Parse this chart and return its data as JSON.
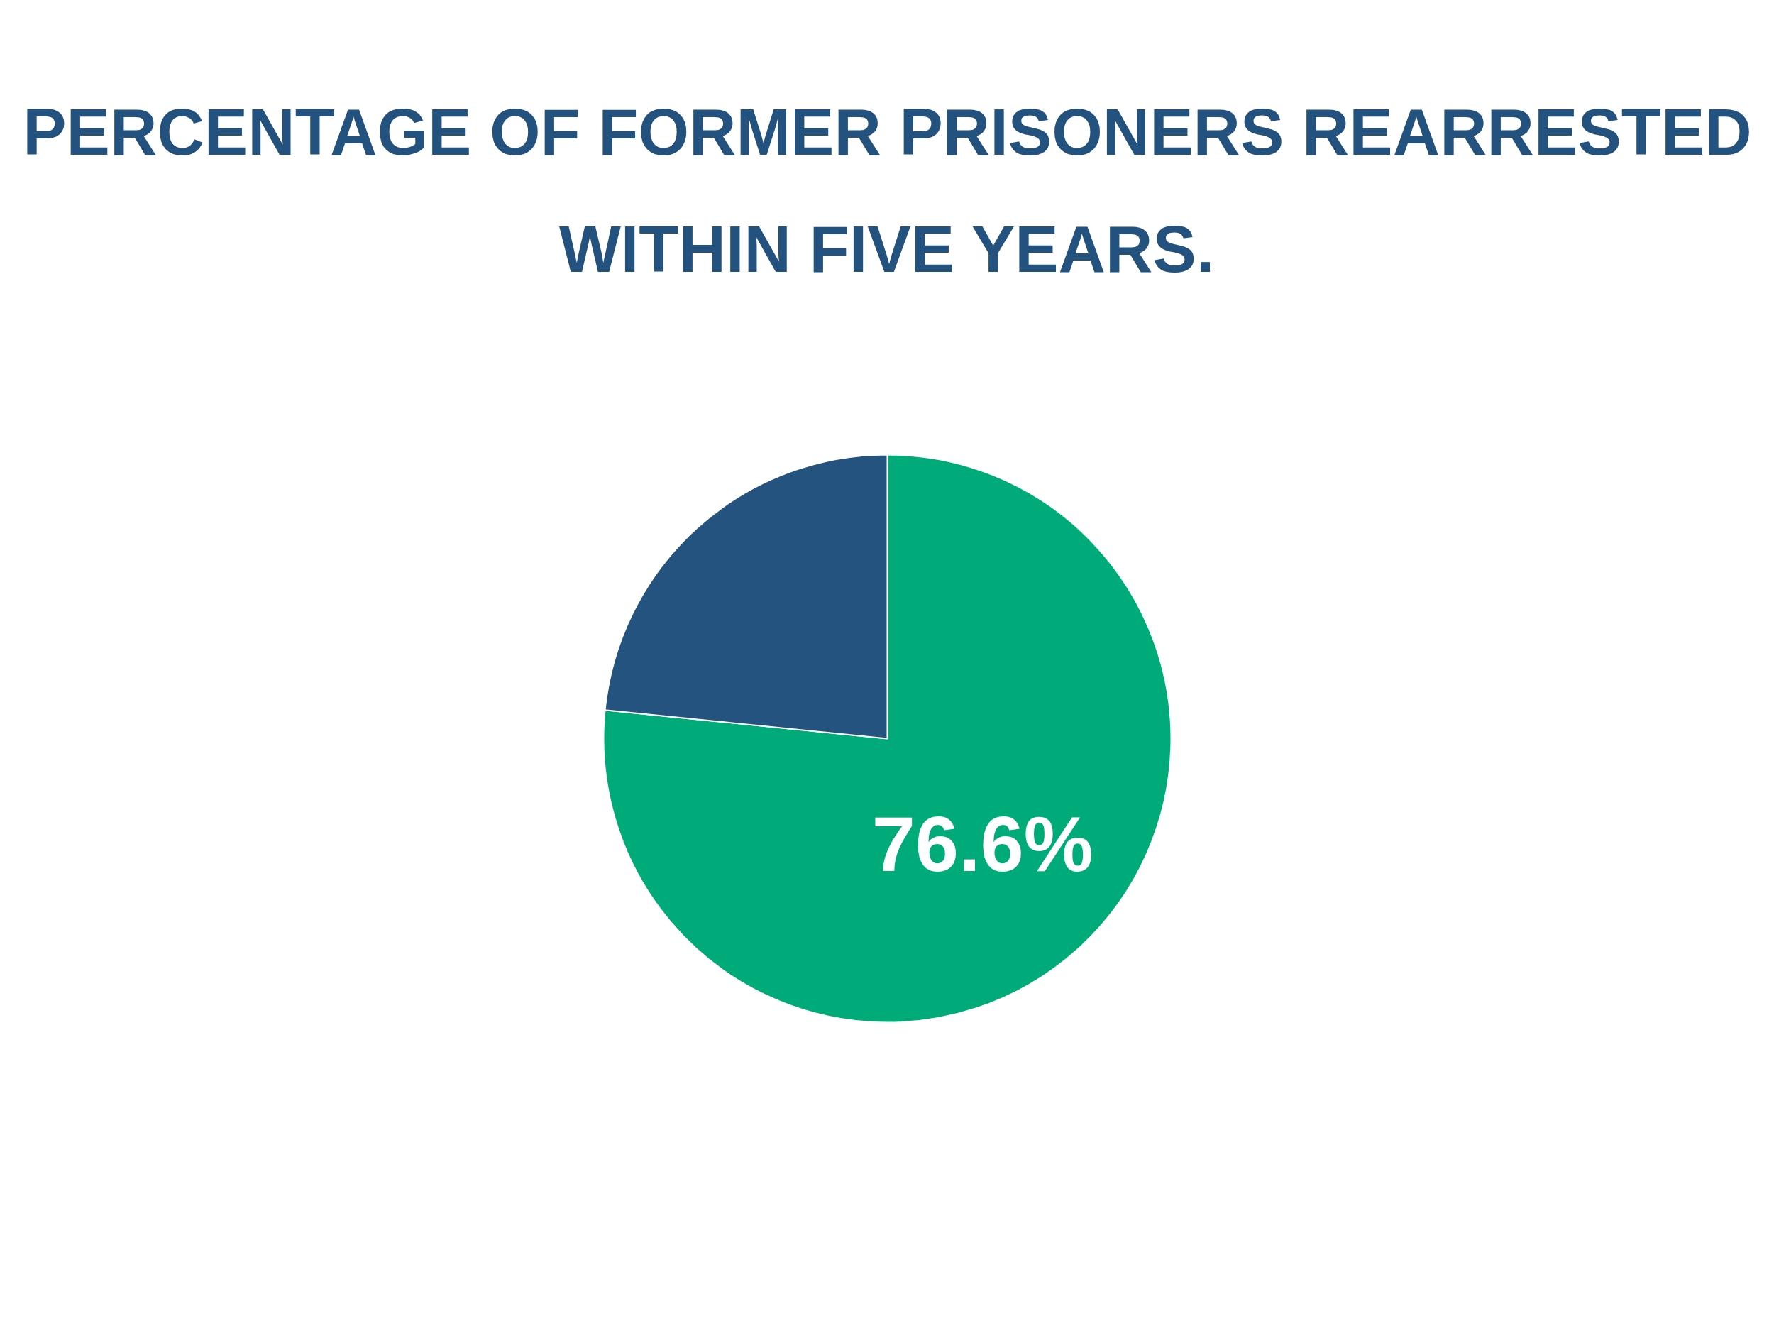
{
  "chart_data": {
    "type": "pie",
    "title": "PERCENTAGE OF FORMER PRISONERS REARRESTED\nWITHIN FIVE YEARS.",
    "categories": [
      null,
      null
    ],
    "values": [
      76.6,
      23.4
    ],
    "colors": [
      "#00ab7a",
      "#24537f"
    ],
    "value_labels": [
      "76.6%",
      null
    ]
  }
}
